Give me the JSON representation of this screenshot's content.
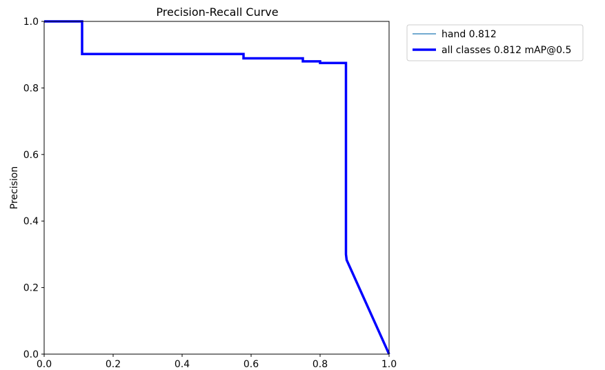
{
  "chart_data": {
    "type": "line",
    "title": "Precision-Recall Curve",
    "xlabel": "",
    "ylabel": "Precision",
    "xlim": [
      0.0,
      1.0
    ],
    "ylim": [
      0.0,
      1.0
    ],
    "x_ticks": [
      0.0,
      0.2,
      0.4,
      0.6,
      0.8,
      1.0
    ],
    "y_ticks": [
      0.0,
      0.2,
      0.4,
      0.6,
      0.8,
      1.0
    ],
    "x_tick_labels": [
      "0.0",
      "0.2",
      "0.4",
      "0.6",
      "0.8",
      "1.0"
    ],
    "y_tick_labels": [
      "0.0",
      "0.2",
      "0.4",
      "0.6",
      "0.8",
      "1.0"
    ],
    "grid": false,
    "legend_position": "outside-top-right",
    "series": [
      {
        "name": "hand 0.812",
        "color": "#1f77b4",
        "x": [
          0.0,
          0.11,
          0.11,
          0.578,
          0.578,
          0.75,
          0.75,
          0.8,
          0.8,
          0.875,
          0.875,
          0.877,
          1.0
        ],
        "y": [
          1.0,
          1.0,
          0.902,
          0.902,
          0.889,
          0.889,
          0.88,
          0.88,
          0.875,
          0.875,
          0.3,
          0.283,
          0.0
        ]
      },
      {
        "name": "all classes 0.812 mAP@0.5",
        "color": "#0000ff",
        "x": [
          0.0,
          0.11,
          0.11,
          0.578,
          0.578,
          0.75,
          0.75,
          0.8,
          0.8,
          0.875,
          0.875,
          0.877,
          1.0
        ],
        "y": [
          1.0,
          1.0,
          0.902,
          0.902,
          0.889,
          0.889,
          0.88,
          0.88,
          0.875,
          0.875,
          0.3,
          0.283,
          0.0
        ]
      }
    ]
  }
}
